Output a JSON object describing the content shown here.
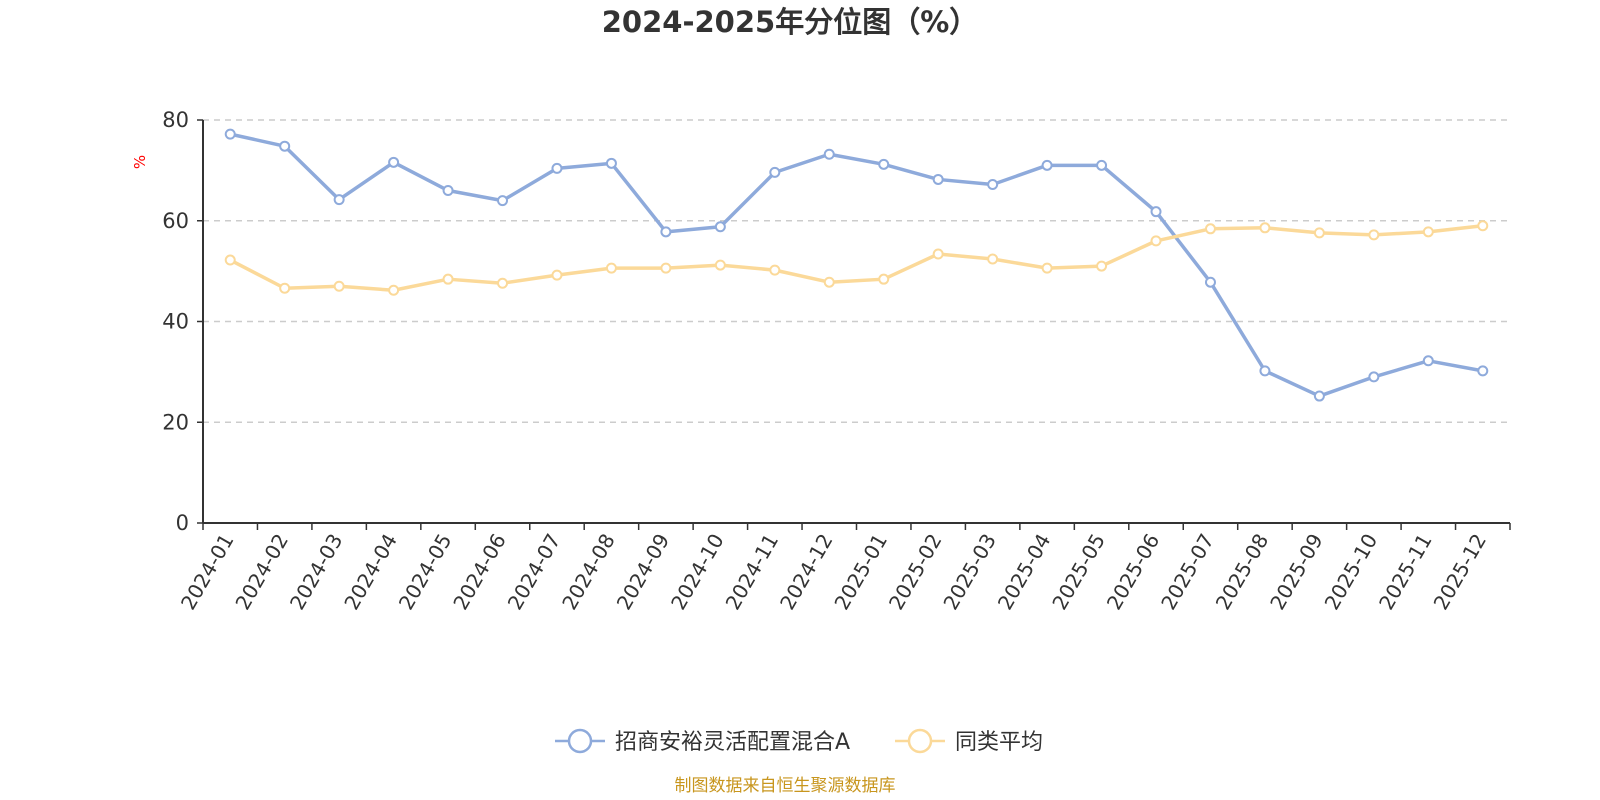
{
  "chart_data": {
    "type": "line",
    "title": "2024-2025年分位图（%）",
    "ylabel": "%",
    "ylim": [
      0,
      80
    ],
    "yticks": [
      0,
      20,
      40,
      60,
      80
    ],
    "grid": true,
    "legend_position": "bottom",
    "categories": [
      "2024-01",
      "2024-02",
      "2024-03",
      "2024-04",
      "2024-05",
      "2024-06",
      "2024-07",
      "2024-08",
      "2024-09",
      "2024-10",
      "2024-11",
      "2024-12",
      "2025-01",
      "2025-02",
      "2025-03",
      "2025-04",
      "2025-05",
      "2025-06",
      "2025-07",
      "2025-08",
      "2025-09",
      "2025-10",
      "2025-11",
      "2025-12"
    ],
    "series": [
      {
        "name": "招商安裕灵活配置混合A",
        "color": "#8eaadb",
        "values": [
          77.2,
          74.8,
          64.2,
          71.6,
          66.0,
          64.0,
          70.4,
          71.4,
          57.8,
          58.8,
          69.6,
          73.2,
          71.2,
          68.2,
          67.2,
          71.0,
          71.0,
          61.8,
          47.8,
          30.2,
          25.2,
          29.0,
          32.2,
          30.2
        ]
      },
      {
        "name": "同类平均",
        "color": "#fbd999",
        "values": [
          52.2,
          46.6,
          47.0,
          46.2,
          48.4,
          47.6,
          49.2,
          50.6,
          50.6,
          51.2,
          50.2,
          47.8,
          48.4,
          53.4,
          52.4,
          50.6,
          51.0,
          56.0,
          58.4,
          58.6,
          57.6,
          57.2,
          57.8,
          59.0
        ]
      }
    ]
  },
  "footer": "制图数据来自恒生聚源数据库"
}
